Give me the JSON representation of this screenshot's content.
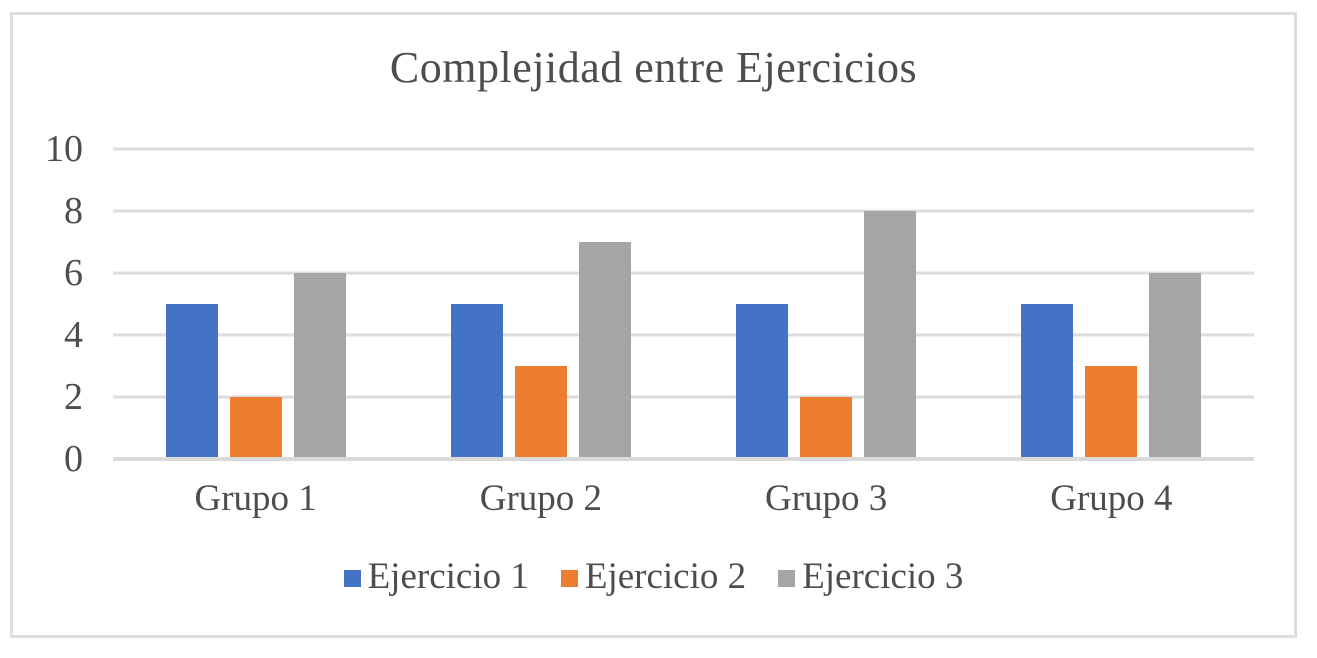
{
  "chart_data": {
    "type": "bar",
    "title": "Complejidad entre Ejercicios",
    "categories": [
      "Grupo 1",
      "Grupo 2",
      "Grupo 3",
      "Grupo 4"
    ],
    "series": [
      {
        "name": "Ejercicio 1",
        "color": "#4472C4",
        "values": [
          5,
          5,
          5,
          5
        ]
      },
      {
        "name": "Ejercicio 2",
        "color": "#ED7D31",
        "values": [
          2,
          3,
          2,
          3
        ]
      },
      {
        "name": "Ejercicio 3",
        "color": "#A5A5A5",
        "values": [
          6,
          7,
          8,
          6
        ]
      }
    ],
    "xlabel": "",
    "ylabel": "",
    "ylim": [
      0,
      10
    ],
    "yticks": [
      0,
      2,
      4,
      6,
      8,
      10
    ],
    "grid": "horizontal",
    "legend_position": "bottom"
  },
  "colors": {
    "gridline": "#DCDCDC",
    "axis_line": "#D9D9D9",
    "frame_border": "#DEDEDE",
    "text": "#4D4D4D",
    "background": "#FFFFFF"
  }
}
